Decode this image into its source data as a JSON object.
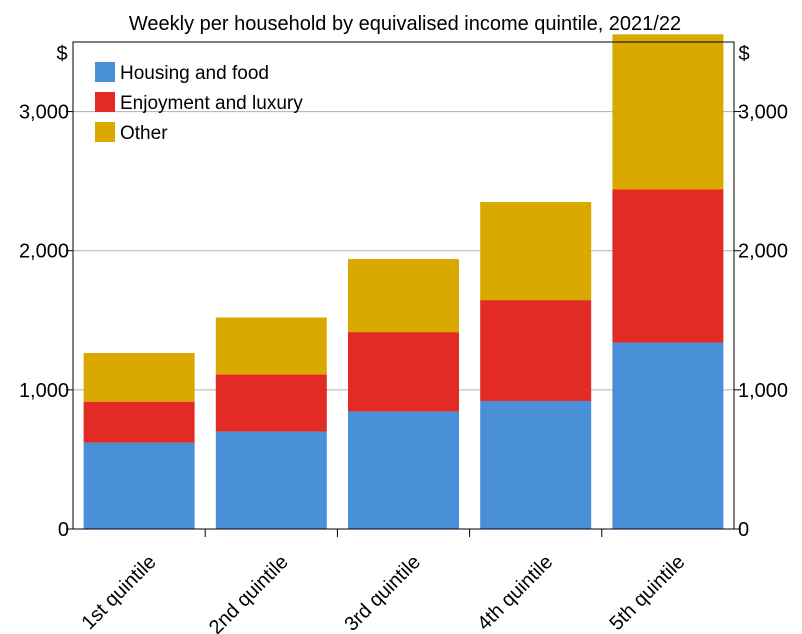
{
  "chart_data": {
    "type": "bar",
    "stacked": true,
    "title": "",
    "subtitle": "Weekly per household by equivalised income quintile, 2021/22",
    "ylabel_left": "$",
    "ylabel_right": "$",
    "ylim": [
      0,
      3500
    ],
    "yticks": [
      0,
      1000,
      2000,
      3000
    ],
    "ytick_labels": [
      "0",
      "1,000",
      "2,000",
      "3,000"
    ],
    "grid": true,
    "legend_position": "top-left",
    "categories": [
      "1st quintile",
      "2nd quintile",
      "3rd quintile",
      "4th quintile",
      "5th quintile"
    ],
    "series": [
      {
        "name": "Housing and food",
        "color": "#4a90d9",
        "values": [
          620,
          700,
          845,
          920,
          1340
        ]
      },
      {
        "name": "Enjoyment and luxury",
        "color": "#e12b24",
        "values": [
          295,
          410,
          570,
          725,
          1100
        ]
      },
      {
        "name": "Other",
        "color": "#d9a900",
        "values": [
          350,
          410,
          525,
          705,
          1115
        ]
      }
    ]
  }
}
